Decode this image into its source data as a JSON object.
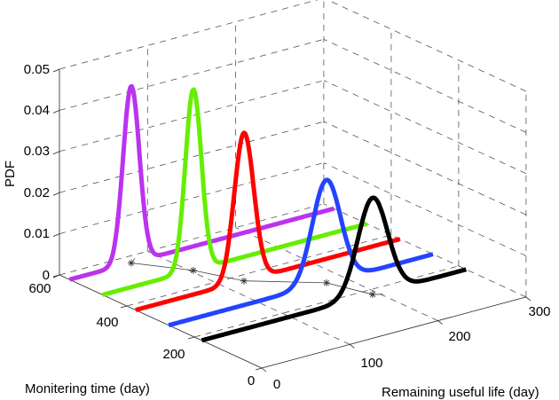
{
  "chart_data": {
    "type": "line",
    "plot_style": "3d-waterfall",
    "xlabel": "Remaining useful life (day)",
    "ylabel": "Monitering time (day)",
    "zlabel": "PDF",
    "xlim": [
      0,
      300
    ],
    "ylim": [
      0,
      600
    ],
    "zlim": [
      0,
      0.05
    ],
    "x_ticks": [
      "0",
      "100",
      "200",
      "300"
    ],
    "y_ticks": [
      "0",
      "200",
      "400",
      "600"
    ],
    "z_ticks": [
      "0",
      "0.01",
      "0.02",
      "0.03",
      "0.04",
      "0.05"
    ],
    "grid": true,
    "series": [
      {
        "monitoring_time": 570,
        "color": "#bb33ee",
        "peak_rul": 70,
        "peak_pdf": 0.043,
        "std": 9.3
      },
      {
        "monitoring_time": 472,
        "color": "#66ee00",
        "peak_rul": 103,
        "peak_pdf": 0.044,
        "std": 9.1
      },
      {
        "monitoring_time": 374,
        "color": "#ff0000",
        "peak_rul": 123,
        "peak_pdf": 0.036,
        "std": 11.1
      },
      {
        "monitoring_time": 276,
        "color": "#2244ff",
        "peak_rul": 179,
        "peak_pdf": 0.025,
        "std": 16.0
      },
      {
        "monitoring_time": 178,
        "color": "#000000",
        "peak_rul": 194,
        "peak_pdf": 0.0235,
        "std": 17.0
      }
    ],
    "markers": {
      "symbol": "asterisk",
      "color": "#333333",
      "note_on_floor": true
    }
  }
}
